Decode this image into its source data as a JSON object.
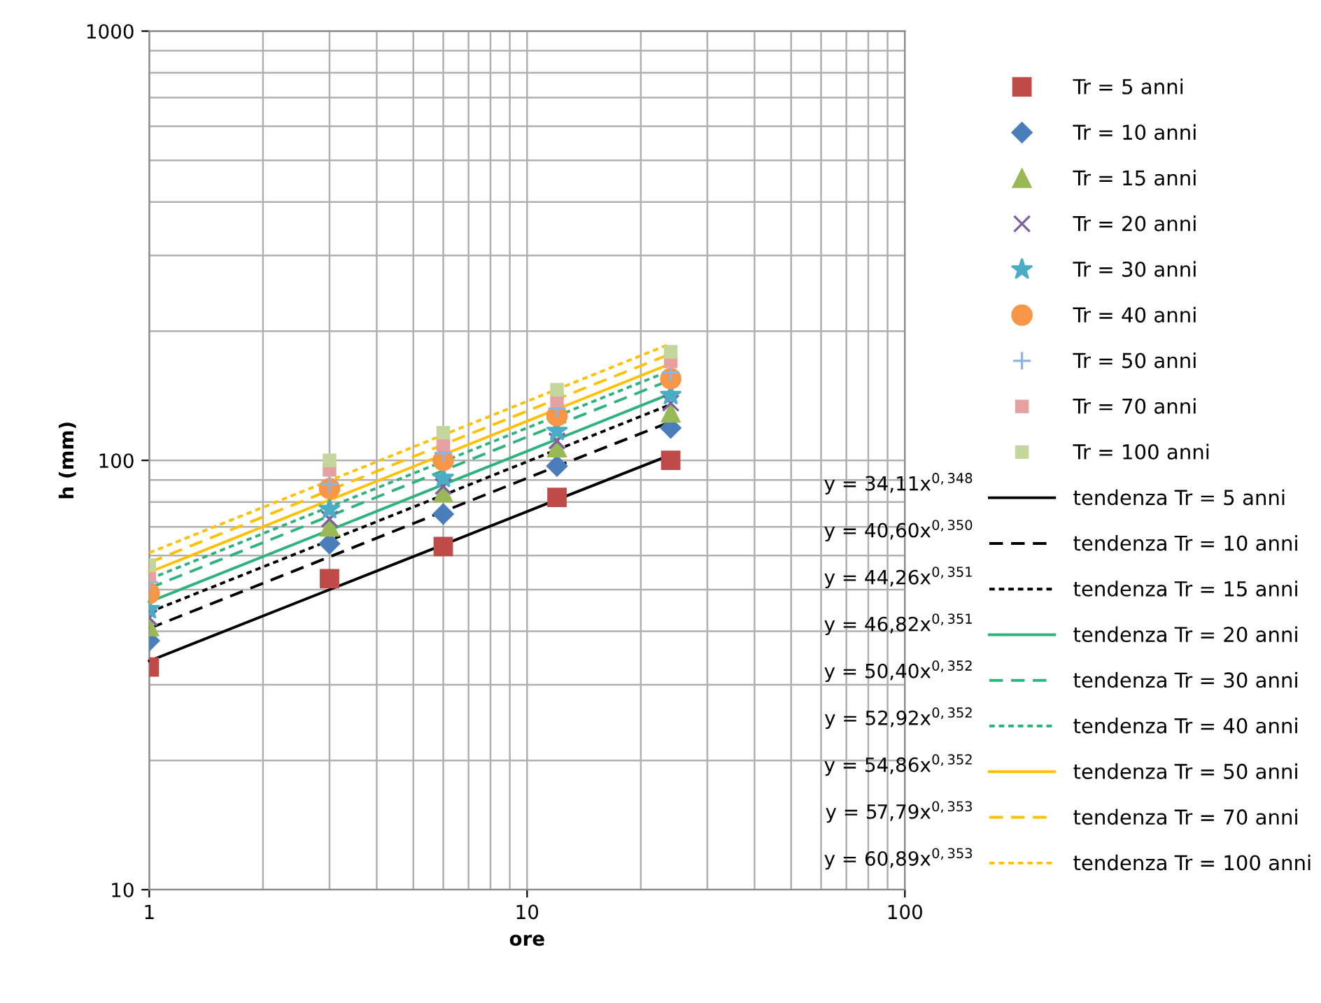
{
  "chart_data": {
    "type": "scatter",
    "xlabel": "ore",
    "ylabel": "h (mm)",
    "log": "xy",
    "grid": true,
    "legend": "right",
    "xlim": [
      1,
      100
    ],
    "ylim": [
      10,
      1000
    ],
    "xticks": [
      1,
      10,
      100
    ],
    "yticks": [
      10,
      100,
      1000
    ],
    "x": [
      1,
      3,
      6,
      12,
      24
    ],
    "series": [
      {
        "name": "Tr = 5 anni",
        "color": "#be4b48",
        "marker": "square",
        "values": [
          33,
          53,
          63,
          82,
          100
        ]
      },
      {
        "name": "Tr = 10 anni",
        "color": "#4a7ebb",
        "marker": "diamond",
        "values": [
          38,
          64,
          75,
          97,
          119
        ]
      },
      {
        "name": "Tr = 15 anni",
        "color": "#98b954",
        "marker": "triangle",
        "values": [
          41,
          70,
          84,
          107,
          129
        ]
      },
      {
        "name": "Tr = 20 anni",
        "color": "#7d60a0",
        "marker": "x",
        "values": [
          43,
          73,
          87,
          111,
          136
        ]
      },
      {
        "name": "Tr = 30 anni",
        "color": "#4bacc6",
        "marker": "star",
        "values": [
          45,
          77,
          91,
          117,
          142
        ]
      },
      {
        "name": "Tr = 40 anni",
        "color": "#f79646",
        "marker": "circle",
        "values": [
          49,
          86,
          100,
          127,
          155
        ]
      },
      {
        "name": "Tr = 50 anni",
        "color": "#8eb4e3",
        "marker": "plus",
        "values": [
          52,
          88,
          104,
          132,
          160
        ]
      },
      {
        "name": "Tr = 70 anni",
        "color": "#e6a0a0",
        "marker": "square",
        "values": [
          54,
          95,
          109,
          138,
          170
        ]
      },
      {
        "name": "Tr = 100 anni",
        "color": "#c3d69b",
        "marker": "square",
        "values": [
          57,
          100,
          116,
          146,
          179
        ]
      },
      {
        "name": "tendenza Tr = 5 anni",
        "type": "line",
        "color": "#000000",
        "line_style": "solid",
        "values": [
          34.1,
          50.0,
          63.6,
          81.0,
          103
        ]
      },
      {
        "name": "tendenza Tr = 10 anni",
        "type": "line",
        "color": "#000000",
        "line_style": "dashed",
        "values": [
          40.6,
          59.6,
          76.0,
          96.9,
          123
        ]
      },
      {
        "name": "tendenza Tr = 15 anni",
        "type": "line",
        "color": "#000000",
        "line_style": "dotted",
        "values": [
          44.3,
          65.1,
          83.0,
          105.9,
          135
        ]
      },
      {
        "name": "tendenza Tr = 20 anni",
        "type": "line",
        "color": "#2db37d",
        "line_style": "solid",
        "values": [
          46.8,
          68.8,
          87.8,
          112.0,
          143
        ]
      },
      {
        "name": "tendenza Tr = 30 anni",
        "type": "line",
        "color": "#2db37d",
        "line_style": "dashed",
        "values": [
          50.4,
          74.2,
          94.7,
          120.9,
          154
        ]
      },
      {
        "name": "tendenza Tr = 40 anni",
        "type": "line",
        "color": "#2db37d",
        "line_style": "dotted",
        "values": [
          52.9,
          77.9,
          99.4,
          126.9,
          162
        ]
      },
      {
        "name": "tendenza Tr = 50 anni",
        "type": "line",
        "color": "#ffc000",
        "line_style": "solid",
        "values": [
          54.9,
          80.8,
          103.1,
          131.6,
          168
        ]
      },
      {
        "name": "tendenza Tr = 70 anni",
        "type": "line",
        "color": "#ffc000",
        "line_style": "dashed",
        "values": [
          57.8,
          85.2,
          108.8,
          138.9,
          177
        ]
      },
      {
        "name": "tendenza Tr = 100 anni",
        "type": "line",
        "color": "#ffc000",
        "line_style": "dotted",
        "values": [
          60.9,
          89.7,
          114.6,
          146.4,
          187
        ]
      }
    ],
    "annotations": [
      "y = 34,11x$^{0,348}$",
      "y = 40,60x$^{0,350}$",
      "y = 44,26x$^{0,351}$",
      "y = 46,82x$^{0,351}$",
      "y = 50,40x$^{0,352}$",
      "y = 52,92x$^{0,352}$",
      "y = 54,86x$^{0,352}$",
      "y = 57,79x$^{0,353}$",
      "y = 60,89x$^{0,353}$"
    ]
  }
}
